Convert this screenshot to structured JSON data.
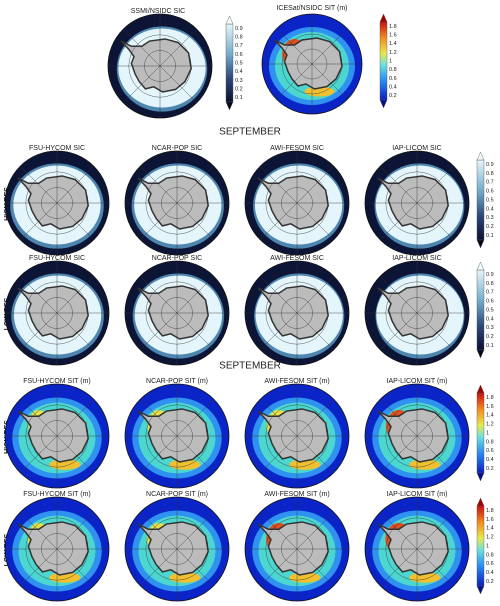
{
  "top": {
    "panels": [
      "SSMI/NSIDC SIC",
      "ICESat/NSIDC SIT (m)"
    ],
    "sic_colorbar": [
      0.9,
      0.8,
      0.7,
      0.6,
      0.5,
      0.4,
      0.3,
      0.2,
      0.1
    ],
    "sit_colorbar": [
      1.8,
      1.6,
      1.4,
      1.2,
      1,
      0.8,
      0.6,
      0.4,
      0.2
    ]
  },
  "sections": [
    {
      "heading": "SEPTEMBER",
      "rows": [
        {
          "label": "HIGH RES.",
          "panels": [
            "FSU-HYCOM SIC",
            "NCAR-POP SIC",
            "AWI-FESOM SIC",
            "IAP-LICOM SIC"
          ],
          "colorbar": [
            0.9,
            0.8,
            0.7,
            0.6,
            0.5,
            0.4,
            0.3,
            0.2,
            0.1
          ]
        },
        {
          "label": "LOW RES.",
          "panels": [
            "FSU-HYCOM SIC",
            "NCAR-POP SIC",
            "AWI-FESOM SIC",
            "IAP-LICOM SIC"
          ],
          "colorbar": [
            0.9,
            0.8,
            0.7,
            0.6,
            0.5,
            0.4,
            0.3,
            0.2,
            0.1
          ]
        }
      ]
    },
    {
      "heading": "SEPTEMBER",
      "rows": [
        {
          "label": "HIGH RES.",
          "panels": [
            "FSU-HYCOM SIT (m)",
            "NCAR-POP SIT (m)",
            "AWI-FESOM SIT (m)",
            "IAP-LICOM SIT (m)"
          ],
          "colorbar": [
            1.8,
            1.6,
            1.4,
            1.2,
            1,
            0.8,
            0.6,
            0.4,
            0.2
          ]
        },
        {
          "label": "LOW RES.",
          "panels": [
            "FSU-HYCOM SIT (m)",
            "NCAR-POP  SIT (m)",
            "AWI-FESOM SIT (m)",
            "IAP-LICOM SIT (m)"
          ],
          "colorbar": [
            1.8,
            1.6,
            1.4,
            1.2,
            1,
            0.8,
            0.6,
            0.4,
            0.2
          ]
        }
      ]
    }
  ]
}
